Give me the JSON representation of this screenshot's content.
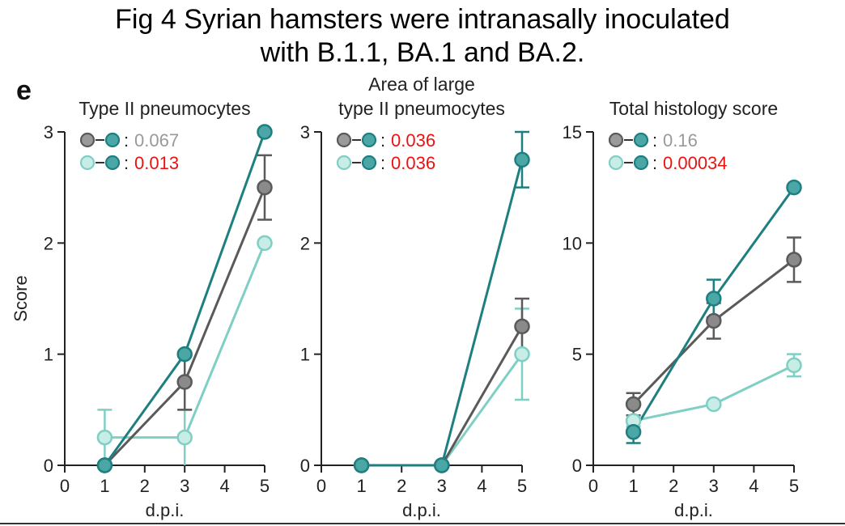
{
  "figure": {
    "title_line1": "Fig 4 Syrian hamsters were intranasally inoculated",
    "title_line2": "with B.1.1, BA.1 and BA.2.",
    "panel_letter": "e"
  },
  "colors": {
    "B.1.1": "#5a5a5a",
    "BA.1": "#7fcfc4",
    "BA.2": "#1e7f80",
    "pvalue_significant": "#ee1111",
    "pvalue_ns": "#999999"
  },
  "chart_data": [
    {
      "type": "line",
      "title": "Type II pneumocytes",
      "ylabel": "Score",
      "xlabel": "d.p.i.",
      "xlim": [
        0,
        5
      ],
      "xticks": [
        0,
        1,
        2,
        3,
        4,
        5
      ],
      "ylim": [
        0,
        3
      ],
      "yticks": [
        0,
        1,
        2,
        3
      ],
      "x": [
        1,
        3,
        5
      ],
      "series": [
        {
          "key": "B.1.1",
          "values": [
            0,
            0.75,
            2.5
          ],
          "err": [
            0,
            0.25,
            0.29
          ]
        },
        {
          "key": "BA.1",
          "values": [
            0.25,
            0.25,
            2.0
          ],
          "err": [
            0.25,
            0.25,
            0
          ]
        },
        {
          "key": "BA.2",
          "values": [
            0,
            1.0,
            3.0
          ],
          "err": [
            0,
            0,
            0
          ]
        }
      ],
      "comparisons": [
        {
          "left": "B.1.1",
          "right": "BA.2",
          "p": "0.067",
          "significant": false
        },
        {
          "left": "BA.1",
          "right": "BA.2",
          "p": "0.013",
          "significant": true
        }
      ]
    },
    {
      "type": "line",
      "title": "Area of large\ntype II pneumocytes",
      "ylabel": "",
      "xlabel": "d.p.i.",
      "xlim": [
        0,
        5
      ],
      "xticks": [
        0,
        1,
        2,
        3,
        4,
        5
      ],
      "ylim": [
        0,
        3
      ],
      "yticks": [
        0,
        1,
        2,
        3
      ],
      "x": [
        1,
        3,
        5
      ],
      "series": [
        {
          "key": "B.1.1",
          "values": [
            0,
            0,
            1.25
          ],
          "err": [
            0,
            0,
            0.25
          ]
        },
        {
          "key": "BA.1",
          "values": [
            0,
            0,
            1.0
          ],
          "err": [
            0,
            0,
            0.41
          ]
        },
        {
          "key": "BA.2",
          "values": [
            0,
            0,
            2.75
          ],
          "err": [
            0,
            0,
            0.25
          ]
        }
      ],
      "comparisons": [
        {
          "left": "B.1.1",
          "right": "BA.2",
          "p": "0.036",
          "significant": true
        },
        {
          "left": "BA.1",
          "right": "BA.2",
          "p": "0.036",
          "significant": true
        }
      ]
    },
    {
      "type": "line",
      "title": "Total histology score",
      "ylabel": "",
      "xlabel": "d.p.i.",
      "xlim": [
        0,
        5
      ],
      "xticks": [
        0,
        1,
        2,
        3,
        4,
        5
      ],
      "ylim": [
        0,
        15
      ],
      "yticks": [
        0,
        5,
        10,
        15
      ],
      "x": [
        1,
        3,
        5
      ],
      "series": [
        {
          "key": "B.1.1",
          "values": [
            2.75,
            6.5,
            9.25
          ],
          "err": [
            0.5,
            0.8,
            1.0
          ]
        },
        {
          "key": "BA.1",
          "values": [
            2.0,
            2.75,
            4.5
          ],
          "err": [
            0.25,
            0,
            0.5
          ]
        },
        {
          "key": "BA.2",
          "values": [
            1.5,
            7.5,
            12.5
          ],
          "err": [
            0.5,
            0.85,
            0
          ]
        }
      ],
      "comparisons": [
        {
          "left": "B.1.1",
          "right": "BA.2",
          "p": "0.16",
          "significant": false
        },
        {
          "left": "BA.1",
          "right": "BA.2",
          "p": "0.00034",
          "significant": true
        }
      ]
    }
  ]
}
